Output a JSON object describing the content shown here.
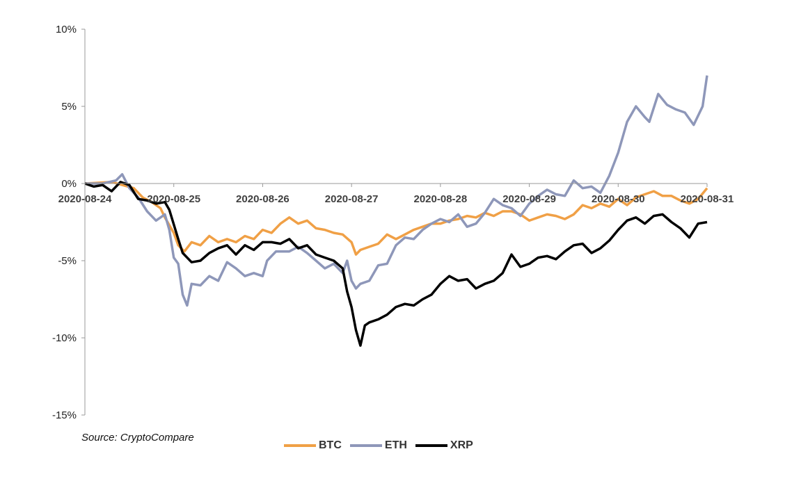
{
  "source": "Source: CryptoCompare",
  "chart_data": {
    "type": "line",
    "title": "",
    "xlabel": "",
    "ylabel": "",
    "x_tick_labels": [
      "2020-08-24",
      "2020-08-25",
      "2020-08-26",
      "2020-08-27",
      "2020-08-28",
      "2020-08-29",
      "2020-08-30",
      "2020-08-31"
    ],
    "y_tick_labels": [
      "10%",
      "5%",
      "0%",
      "-5%",
      "-10%",
      "-15%"
    ],
    "y_ticks": [
      10,
      5,
      0,
      -5,
      -10,
      -15
    ],
    "ylim": [
      -15,
      10
    ],
    "xlim": [
      0,
      7
    ],
    "legend_position": "bottom",
    "grid": false,
    "series": [
      {
        "name": "BTC",
        "color": "#F0A046",
        "points": [
          [
            0,
            0
          ],
          [
            0.3,
            0.1
          ],
          [
            0.55,
            -0.3
          ],
          [
            0.65,
            -0.9
          ],
          [
            0.75,
            -1.2
          ],
          [
            0.85,
            -1.6
          ],
          [
            0.9,
            -2.2
          ],
          [
            1.0,
            -3.2
          ],
          [
            1.05,
            -4.0
          ],
          [
            1.12,
            -4.4
          ],
          [
            1.2,
            -3.8
          ],
          [
            1.3,
            -4.0
          ],
          [
            1.4,
            -3.4
          ],
          [
            1.5,
            -3.8
          ],
          [
            1.6,
            -3.6
          ],
          [
            1.7,
            -3.8
          ],
          [
            1.8,
            -3.4
          ],
          [
            1.9,
            -3.6
          ],
          [
            2.0,
            -3.0
          ],
          [
            2.1,
            -3.2
          ],
          [
            2.2,
            -2.6
          ],
          [
            2.3,
            -2.2
          ],
          [
            2.4,
            -2.6
          ],
          [
            2.5,
            -2.4
          ],
          [
            2.6,
            -2.9
          ],
          [
            2.7,
            -3.0
          ],
          [
            2.8,
            -3.2
          ],
          [
            2.9,
            -3.3
          ],
          [
            3.0,
            -3.8
          ],
          [
            3.05,
            -4.6
          ],
          [
            3.1,
            -4.3
          ],
          [
            3.2,
            -4.1
          ],
          [
            3.3,
            -3.9
          ],
          [
            3.4,
            -3.3
          ],
          [
            3.5,
            -3.6
          ],
          [
            3.6,
            -3.3
          ],
          [
            3.7,
            -3.0
          ],
          [
            3.8,
            -2.8
          ],
          [
            3.9,
            -2.6
          ],
          [
            4.0,
            -2.6
          ],
          [
            4.1,
            -2.4
          ],
          [
            4.2,
            -2.3
          ],
          [
            4.3,
            -2.1
          ],
          [
            4.4,
            -2.2
          ],
          [
            4.5,
            -1.9
          ],
          [
            4.6,
            -2.1
          ],
          [
            4.7,
            -1.8
          ],
          [
            4.8,
            -1.8
          ],
          [
            4.9,
            -2.0
          ],
          [
            5.0,
            -2.4
          ],
          [
            5.1,
            -2.2
          ],
          [
            5.2,
            -2.0
          ],
          [
            5.3,
            -2.1
          ],
          [
            5.4,
            -2.3
          ],
          [
            5.5,
            -2.0
          ],
          [
            5.6,
            -1.4
          ],
          [
            5.7,
            -1.6
          ],
          [
            5.8,
            -1.3
          ],
          [
            5.9,
            -1.5
          ],
          [
            6.0,
            -1.0
          ],
          [
            6.1,
            -1.4
          ],
          [
            6.2,
            -0.9
          ],
          [
            6.3,
            -0.7
          ],
          [
            6.4,
            -0.5
          ],
          [
            6.5,
            -0.8
          ],
          [
            6.6,
            -0.8
          ],
          [
            6.7,
            -1.1
          ],
          [
            6.8,
            -1.3
          ],
          [
            6.9,
            -1.0
          ],
          [
            7.0,
            -0.3
          ]
        ]
      },
      {
        "name": "ETH",
        "color": "#8E97B9",
        "points": [
          [
            0,
            0
          ],
          [
            0.2,
            0.0
          ],
          [
            0.35,
            0.2
          ],
          [
            0.42,
            0.6
          ],
          [
            0.5,
            -0.3
          ],
          [
            0.6,
            -0.9
          ],
          [
            0.7,
            -1.8
          ],
          [
            0.8,
            -2.4
          ],
          [
            0.9,
            -2.0
          ],
          [
            0.95,
            -3.0
          ],
          [
            1.0,
            -4.8
          ],
          [
            1.05,
            -5.2
          ],
          [
            1.1,
            -7.2
          ],
          [
            1.15,
            -7.9
          ],
          [
            1.2,
            -6.5
          ],
          [
            1.3,
            -6.6
          ],
          [
            1.4,
            -6.0
          ],
          [
            1.5,
            -6.3
          ],
          [
            1.6,
            -5.1
          ],
          [
            1.7,
            -5.5
          ],
          [
            1.8,
            -6.0
          ],
          [
            1.9,
            -5.8
          ],
          [
            2.0,
            -6.0
          ],
          [
            2.05,
            -5.0
          ],
          [
            2.15,
            -4.4
          ],
          [
            2.3,
            -4.4
          ],
          [
            2.4,
            -4.1
          ],
          [
            2.5,
            -4.5
          ],
          [
            2.6,
            -5.0
          ],
          [
            2.7,
            -5.5
          ],
          [
            2.8,
            -5.2
          ],
          [
            2.9,
            -5.8
          ],
          [
            2.95,
            -5.0
          ],
          [
            3.0,
            -6.3
          ],
          [
            3.05,
            -6.8
          ],
          [
            3.1,
            -6.5
          ],
          [
            3.2,
            -6.3
          ],
          [
            3.3,
            -5.3
          ],
          [
            3.4,
            -5.2
          ],
          [
            3.5,
            -4.0
          ],
          [
            3.6,
            -3.5
          ],
          [
            3.7,
            -3.6
          ],
          [
            3.8,
            -3.0
          ],
          [
            3.9,
            -2.6
          ],
          [
            4.0,
            -2.3
          ],
          [
            4.1,
            -2.5
          ],
          [
            4.2,
            -2.0
          ],
          [
            4.3,
            -2.8
          ],
          [
            4.4,
            -2.6
          ],
          [
            4.5,
            -1.9
          ],
          [
            4.6,
            -1.0
          ],
          [
            4.7,
            -1.4
          ],
          [
            4.8,
            -1.6
          ],
          [
            4.9,
            -2.1
          ],
          [
            5.0,
            -1.3
          ],
          [
            5.1,
            -0.8
          ],
          [
            5.2,
            -0.4
          ],
          [
            5.3,
            -0.7
          ],
          [
            5.4,
            -0.8
          ],
          [
            5.5,
            0.2
          ],
          [
            5.6,
            -0.3
          ],
          [
            5.7,
            -0.2
          ],
          [
            5.8,
            -0.6
          ],
          [
            5.9,
            0.5
          ],
          [
            6.0,
            2.0
          ],
          [
            6.1,
            4.0
          ],
          [
            6.2,
            5.0
          ],
          [
            6.3,
            4.3
          ],
          [
            6.35,
            4.0
          ],
          [
            6.45,
            5.8
          ],
          [
            6.55,
            5.1
          ],
          [
            6.65,
            4.8
          ],
          [
            6.75,
            4.6
          ],
          [
            6.85,
            3.8
          ],
          [
            6.95,
            5.0
          ],
          [
            7.0,
            7.0
          ]
        ]
      },
      {
        "name": "XRP",
        "color": "#000000",
        "points": [
          [
            0,
            0
          ],
          [
            0.1,
            -0.2
          ],
          [
            0.2,
            -0.1
          ],
          [
            0.3,
            -0.5
          ],
          [
            0.4,
            0.1
          ],
          [
            0.5,
            -0.1
          ],
          [
            0.6,
            -1.0
          ],
          [
            0.7,
            -1.1
          ],
          [
            0.8,
            -1.3
          ],
          [
            0.9,
            -1.2
          ],
          [
            0.95,
            -1.7
          ],
          [
            1.05,
            -3.6
          ],
          [
            1.1,
            -4.5
          ],
          [
            1.2,
            -5.1
          ],
          [
            1.3,
            -5.0
          ],
          [
            1.4,
            -4.5
          ],
          [
            1.5,
            -4.2
          ],
          [
            1.6,
            -4.0
          ],
          [
            1.7,
            -4.6
          ],
          [
            1.8,
            -4.0
          ],
          [
            1.9,
            -4.3
          ],
          [
            2.0,
            -3.8
          ],
          [
            2.1,
            -3.8
          ],
          [
            2.2,
            -3.9
          ],
          [
            2.3,
            -3.6
          ],
          [
            2.4,
            -4.2
          ],
          [
            2.5,
            -4.0
          ],
          [
            2.6,
            -4.6
          ],
          [
            2.7,
            -4.8
          ],
          [
            2.8,
            -5.0
          ],
          [
            2.9,
            -5.5
          ],
          [
            2.95,
            -7.0
          ],
          [
            3.0,
            -8.0
          ],
          [
            3.05,
            -9.5
          ],
          [
            3.1,
            -10.5
          ],
          [
            3.15,
            -9.2
          ],
          [
            3.2,
            -9.0
          ],
          [
            3.3,
            -8.8
          ],
          [
            3.4,
            -8.5
          ],
          [
            3.5,
            -8.0
          ],
          [
            3.6,
            -7.8
          ],
          [
            3.7,
            -7.9
          ],
          [
            3.8,
            -7.5
          ],
          [
            3.9,
            -7.2
          ],
          [
            4.0,
            -6.5
          ],
          [
            4.1,
            -6.0
          ],
          [
            4.2,
            -6.3
          ],
          [
            4.3,
            -6.2
          ],
          [
            4.4,
            -6.8
          ],
          [
            4.5,
            -6.5
          ],
          [
            4.6,
            -6.3
          ],
          [
            4.7,
            -5.8
          ],
          [
            4.8,
            -4.6
          ],
          [
            4.9,
            -5.4
          ],
          [
            5.0,
            -5.2
          ],
          [
            5.1,
            -4.8
          ],
          [
            5.2,
            -4.7
          ],
          [
            5.3,
            -4.9
          ],
          [
            5.4,
            -4.4
          ],
          [
            5.5,
            -4.0
          ],
          [
            5.6,
            -3.9
          ],
          [
            5.7,
            -4.5
          ],
          [
            5.8,
            -4.2
          ],
          [
            5.9,
            -3.7
          ],
          [
            6.0,
            -3.0
          ],
          [
            6.1,
            -2.4
          ],
          [
            6.2,
            -2.2
          ],
          [
            6.3,
            -2.6
          ],
          [
            6.4,
            -2.1
          ],
          [
            6.5,
            -2.0
          ],
          [
            6.6,
            -2.5
          ],
          [
            6.7,
            -2.9
          ],
          [
            6.8,
            -3.5
          ],
          [
            6.9,
            -2.6
          ],
          [
            7.0,
            -2.5
          ]
        ]
      }
    ]
  }
}
